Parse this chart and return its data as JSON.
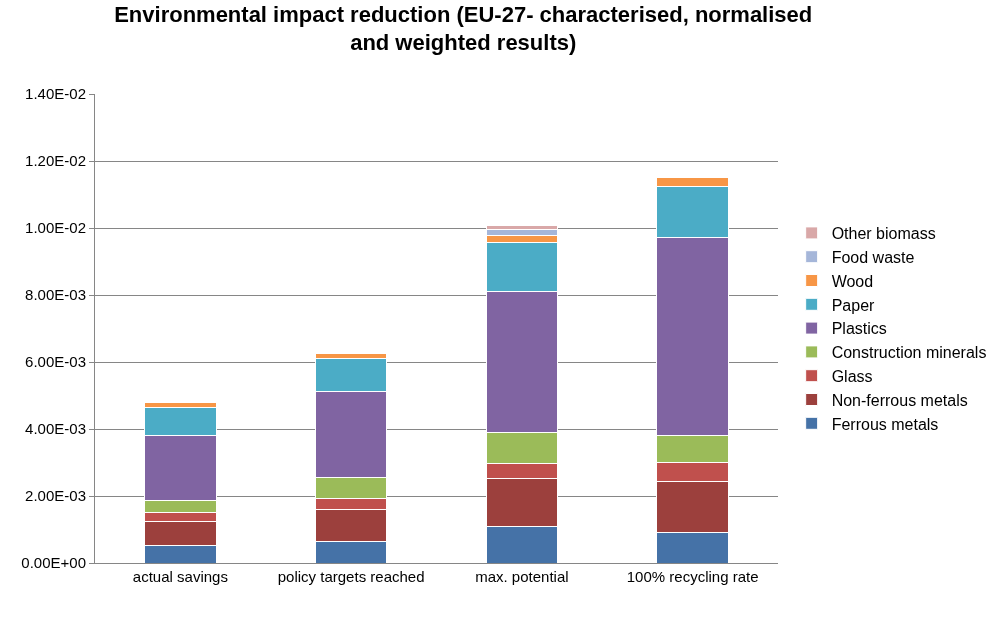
{
  "chart_data": {
    "type": "bar",
    "stacked": true,
    "title": "Environmental impact reduction (EU-27- characterised, normalised and weighted results)",
    "categories": [
      "actual savings",
      "policy targets reached",
      "max. potential",
      "100% recycling rate"
    ],
    "series": [
      {
        "name": "Ferrous metals",
        "color": "#4572a7",
        "values": [
          0.00051,
          0.00064,
          0.00109,
          0.00091
        ]
      },
      {
        "name": "Non-ferrous metals",
        "color": "#9c403d",
        "values": [
          0.00073,
          0.00096,
          0.00142,
          0.00151
        ]
      },
      {
        "name": "Glass",
        "color": "#c0504d",
        "values": [
          0.00027,
          0.00032,
          0.00045,
          0.00057
        ]
      },
      {
        "name": "Construction minerals",
        "color": "#9bbb59",
        "values": [
          0.00036,
          0.00062,
          0.00094,
          0.00082
        ]
      },
      {
        "name": "Plastics",
        "color": "#8064a2",
        "values": [
          0.00193,
          0.00257,
          0.00421,
          0.00592
        ]
      },
      {
        "name": "Paper",
        "color": "#4bacc6",
        "values": [
          0.00085,
          0.00099,
          0.00145,
          0.00152
        ]
      },
      {
        "name": "Wood",
        "color": "#f79646",
        "values": [
          0.00013,
          0.00015,
          0.00023,
          0.00027
        ]
      },
      {
        "name": "Food waste",
        "color": "#a5b6d9",
        "values": [
          null,
          null,
          0.00017,
          null
        ]
      },
      {
        "name": "Other biomass",
        "color": "#d9a8a8",
        "values": [
          null,
          null,
          0.0001,
          null
        ]
      }
    ],
    "ylim": [
      0,
      0.014
    ],
    "yticks": [
      {
        "value": 0,
        "label": "0.00E+00"
      },
      {
        "value": 0.002,
        "label": "2.00E-03"
      },
      {
        "value": 0.004,
        "label": "4.00E-03"
      },
      {
        "value": 0.006,
        "label": "6.00E-03"
      },
      {
        "value": 0.008,
        "label": "8.00E-03"
      },
      {
        "value": 0.01,
        "label": "1.00E-02"
      },
      {
        "value": 0.012,
        "label": "1.20E-02"
      },
      {
        "value": 0.014,
        "label": "1.40E-02"
      }
    ],
    "grid": "y",
    "legend": "right"
  }
}
